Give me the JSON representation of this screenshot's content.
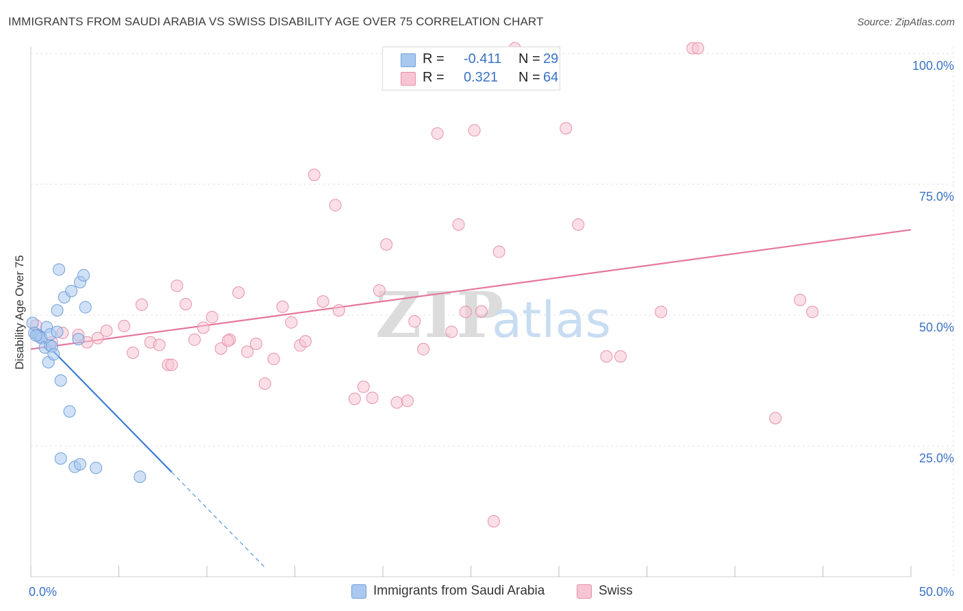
{
  "title": "IMMIGRANTS FROM SAUDI ARABIA VS SWISS DISABILITY AGE OVER 75 CORRELATION CHART",
  "source": "Source: ZipAtlas.com",
  "watermark": {
    "zip": "ZIP",
    "atlas": "atlas"
  },
  "legend": {
    "r_label": "R =",
    "n_label": "N =",
    "rows": [
      {
        "r": "-0.411",
        "n": "29",
        "color": "#a9c8f0",
        "border": "#6f9fd8"
      },
      {
        "r": "0.321",
        "n": "64",
        "color": "#f7c5d4",
        "border": "#e690ab"
      }
    ]
  },
  "bottom_legend": [
    "Immigrants from Saudi Arabia",
    "Swiss"
  ],
  "chart_data": {
    "type": "scatter",
    "title": "IMMIGRANTS FROM SAUDI ARABIA VS SWISS DISABILITY AGE OVER 75 CORRELATION CHART",
    "xlabel": "",
    "ylabel": "Disability Age Over 75",
    "xlim": [
      0,
      50
    ],
    "ylim": [
      0,
      100
    ],
    "x_tick_labels": [
      "0.0%",
      "50.0%"
    ],
    "y_ticks": [
      25,
      50,
      75,
      100
    ],
    "y_tick_labels": [
      "25.0%",
      "50.0%",
      "75.0%",
      "100.0%"
    ],
    "series": [
      {
        "name": "Immigrants from Saudi Arabia",
        "color": "#a9c8f0",
        "stroke": "#6f9fd8",
        "trend": {
          "x0": 0,
          "y0": 47.5,
          "x1": 8,
          "y1": 20.0,
          "dash_to_x": 13.3,
          "color": "#3a7bd5"
        },
        "points": [
          [
            0.1,
            48.5
          ],
          [
            0.2,
            46.6
          ],
          [
            0.4,
            46.2
          ],
          [
            0.5,
            45.9
          ],
          [
            0.6,
            45.6
          ],
          [
            0.8,
            43.8
          ],
          [
            0.9,
            47.7
          ],
          [
            1.0,
            41.0
          ],
          [
            1.1,
            44.2
          ],
          [
            1.1,
            46.3
          ],
          [
            1.2,
            44.0
          ],
          [
            1.3,
            42.5
          ],
          [
            1.5,
            50.9
          ],
          [
            1.6,
            58.7
          ],
          [
            1.7,
            37.5
          ],
          [
            1.9,
            53.4
          ],
          [
            2.3,
            54.6
          ],
          [
            2.8,
            56.3
          ],
          [
            3.1,
            51.5
          ],
          [
            2.2,
            31.6
          ],
          [
            1.7,
            22.6
          ],
          [
            2.5,
            21.0
          ],
          [
            2.8,
            21.5
          ],
          [
            3.7,
            20.8
          ],
          [
            6.2,
            19.1
          ],
          [
            2.7,
            45.4
          ],
          [
            1.5,
            46.8
          ],
          [
            0.3,
            46.1
          ],
          [
            3.0,
            57.6
          ]
        ]
      },
      {
        "name": "Swiss",
        "color": "#f7c5d4",
        "stroke": "#e690ab",
        "trend": {
          "x0": 0,
          "y0": 43.5,
          "x1": 50,
          "y1": 66.3,
          "color": "#e5769a"
        },
        "points": [
          [
            0.3,
            48.0
          ],
          [
            1.2,
            44.8
          ],
          [
            1.8,
            46.6
          ],
          [
            2.7,
            46.2
          ],
          [
            3.2,
            44.8
          ],
          [
            3.8,
            45.6
          ],
          [
            4.3,
            47.0
          ],
          [
            5.3,
            47.9
          ],
          [
            5.8,
            42.8
          ],
          [
            6.3,
            52.0
          ],
          [
            6.8,
            44.8
          ],
          [
            7.3,
            44.3
          ],
          [
            7.8,
            40.5
          ],
          [
            8.3,
            55.6
          ],
          [
            8.8,
            52.1
          ],
          [
            9.3,
            45.3
          ],
          [
            9.8,
            47.6
          ],
          [
            10.3,
            49.6
          ],
          [
            10.8,
            43.6
          ],
          [
            11.3,
            45.3
          ],
          [
            11.8,
            54.3
          ],
          [
            12.3,
            43.0
          ],
          [
            12.8,
            44.5
          ],
          [
            13.3,
            36.9
          ],
          [
            13.8,
            41.6
          ],
          [
            14.3,
            51.6
          ],
          [
            14.8,
            48.6
          ],
          [
            15.3,
            44.2
          ],
          [
            15.6,
            45.0
          ],
          [
            16.1,
            76.8
          ],
          [
            16.6,
            52.6
          ],
          [
            17.3,
            71.0
          ],
          [
            17.5,
            50.9
          ],
          [
            18.4,
            34.0
          ],
          [
            18.9,
            36.3
          ],
          [
            19.4,
            34.2
          ],
          [
            19.8,
            54.7
          ],
          [
            20.2,
            63.5
          ],
          [
            20.8,
            33.3
          ],
          [
            21.4,
            33.6
          ],
          [
            21.8,
            48.8
          ],
          [
            22.3,
            43.5
          ],
          [
            23.1,
            84.7
          ],
          [
            23.9,
            46.8
          ],
          [
            24.3,
            67.3
          ],
          [
            24.7,
            50.6
          ],
          [
            25.2,
            85.3
          ],
          [
            25.6,
            50.7
          ],
          [
            26.6,
            62.1
          ],
          [
            26.3,
            10.6
          ],
          [
            30.4,
            85.7
          ],
          [
            31.1,
            67.3
          ],
          [
            32.7,
            42.1
          ],
          [
            33.5,
            42.1
          ],
          [
            35.8,
            50.6
          ],
          [
            27.5,
            101.0
          ],
          [
            37.6,
            101.0
          ],
          [
            37.9,
            101.0
          ],
          [
            42.3,
            30.3
          ],
          [
            43.7,
            52.9
          ],
          [
            44.4,
            50.6
          ],
          [
            8.0,
            40.5
          ],
          [
            11.2,
            45.1
          ],
          [
            0.5,
            45.8
          ]
        ]
      }
    ]
  }
}
